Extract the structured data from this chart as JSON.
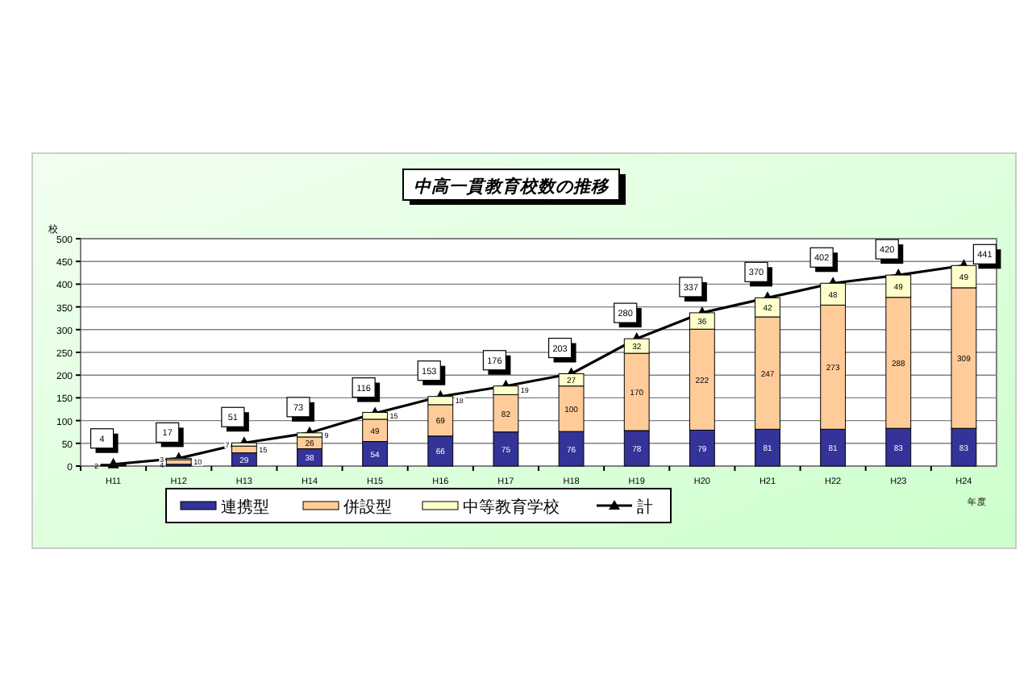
{
  "chart_data": {
    "type": "bar",
    "stacked": true,
    "title": "中高一貫教育校数の推移",
    "ylabel": "校",
    "xlabel": "年度",
    "categories": [
      "H11",
      "H12",
      "H13",
      "H14",
      "H15",
      "H16",
      "H17",
      "H18",
      "H19",
      "H20",
      "H21",
      "H22",
      "H23",
      "H24"
    ],
    "series": [
      {
        "name": "連携型",
        "color": "#333399",
        "values": [
          2,
          4,
          29,
          38,
          54,
          66,
          75,
          76,
          78,
          79,
          81,
          81,
          83,
          83
        ]
      },
      {
        "name": "併設型",
        "color": "#ffcc99",
        "values": [
          1,
          10,
          15,
          26,
          49,
          69,
          82,
          100,
          170,
          222,
          247,
          273,
          288,
          309
        ],
        "value_labels": [
          null,
          "10",
          "15",
          "26",
          "49",
          "69",
          "82",
          "100",
          "170",
          "222",
          "247",
          "273",
          "288",
          "309"
        ]
      },
      {
        "name": "中等教育学校",
        "color": "#ffffcc",
        "values": [
          1,
          3,
          7,
          9,
          15,
          18,
          19,
          27,
          32,
          36,
          42,
          48,
          49,
          49
        ],
        "value_labels": [
          null,
          "3",
          "7",
          "9",
          "15",
          "18",
          "19",
          "27",
          "32",
          "36",
          "42",
          "48",
          "49",
          "49"
        ]
      },
      {
        "name": "計",
        "type": "line",
        "color": "#000000",
        "marker": "triangle",
        "values": [
          4,
          17,
          51,
          73,
          116,
          153,
          176,
          203,
          280,
          337,
          370,
          402,
          420,
          441
        ]
      }
    ],
    "ylim": [
      0,
      500
    ],
    "yticks": [
      0,
      50,
      100,
      150,
      200,
      250,
      300,
      350,
      400,
      450,
      500
    ],
    "grid": "y",
    "legend": "bottom",
    "data_labels": true
  }
}
